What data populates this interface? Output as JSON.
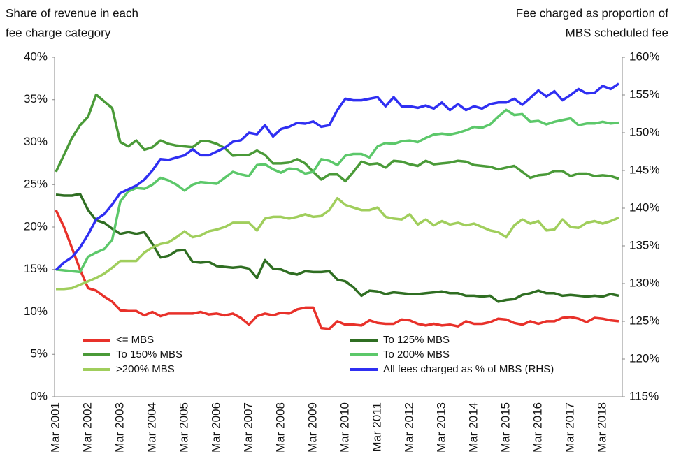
{
  "chart_data": {
    "type": "line",
    "ylabel": [
      "Share of revenue in each",
      "fee charge category"
    ],
    "y2label": [
      "Fee charged as proportion of",
      "MBS scheduled fee"
    ],
    "categories": [
      "Mar 2001",
      null,
      null,
      null,
      "Mar 2002",
      null,
      null,
      null,
      "Mar 2003",
      null,
      null,
      null,
      "Mar 2004",
      null,
      null,
      null,
      "Mar 2005",
      null,
      null,
      null,
      "Mar 2006",
      null,
      null,
      null,
      "Mar 2007",
      null,
      null,
      null,
      "Mar 2008",
      null,
      null,
      null,
      "Mar 2009",
      null,
      null,
      null,
      "Mar 2010",
      null,
      null,
      null,
      "Mar 2011",
      null,
      null,
      null,
      "Mar 2012",
      null,
      null,
      null,
      "Mar 2013",
      null,
      null,
      null,
      "Mar 2014",
      null,
      null,
      null,
      "Mar 2015",
      null,
      null,
      null,
      "Mar 2016",
      null,
      null,
      null,
      "Mar 2017",
      null,
      null,
      null,
      "Mar 2018",
      null,
      null
    ],
    "ylim": [
      0,
      40
    ],
    "yticks": [
      {
        "value": 0,
        "label": "0%"
      },
      {
        "value": 5,
        "label": "5%"
      },
      {
        "value": 10,
        "label": "10%"
      },
      {
        "value": 15,
        "label": "15%"
      },
      {
        "value": 20,
        "label": "20%"
      },
      {
        "value": 25,
        "label": "25%"
      },
      {
        "value": 30,
        "label": "30%"
      },
      {
        "value": 35,
        "label": "35%"
      },
      {
        "value": 40,
        "label": "40%"
      }
    ],
    "y2lim": [
      115,
      160
    ],
    "y2ticks": [
      {
        "value": 115,
        "label": "115%"
      },
      {
        "value": 120,
        "label": "120%"
      },
      {
        "value": 125,
        "label": "125%"
      },
      {
        "value": 130,
        "label": "130%"
      },
      {
        "value": 135,
        "label": "135%"
      },
      {
        "value": 140,
        "label": "140%"
      },
      {
        "value": 145,
        "label": "145%"
      },
      {
        "value": 150,
        "label": "150%"
      },
      {
        "value": 155,
        "label": "155%"
      },
      {
        "value": 160,
        "label": "160%"
      }
    ],
    "grid": false,
    "series": [
      {
        "name": "<= MBS",
        "color": "#e8312a",
        "values": [
          22,
          20,
          17.5,
          15,
          12.8,
          12.5,
          11.8,
          11.2,
          10.2,
          10.1,
          10.1,
          9.6,
          10.0,
          9.5,
          9.8,
          9.8,
          9.8,
          9.8,
          10.0,
          9.7,
          9.8,
          9.6,
          9.8,
          9.3,
          8.5,
          9.5,
          9.8,
          9.6,
          9.9,
          9.8,
          10.3,
          10.5,
          10.5,
          8.1,
          8.0,
          8.9,
          8.5,
          8.5,
          8.4,
          9.0,
          8.7,
          8.6,
          8.6,
          9.1,
          9.0,
          8.6,
          8.4,
          8.6,
          8.4,
          8.5,
          8.3,
          8.9,
          8.6,
          8.6,
          8.8,
          9.2,
          9.1,
          8.7,
          8.5,
          8.9,
          8.6,
          8.9,
          8.9,
          9.3,
          9.4,
          9.2,
          8.8,
          9.3,
          9.2,
          9.0,
          8.9
        ]
      },
      {
        "name": "To 125% MBS",
        "color": "#2f6e22",
        "values": [
          23.8,
          23.7,
          23.7,
          23.9,
          22,
          20.8,
          20.5,
          19.8,
          19.2,
          19.4,
          19.2,
          19.4,
          18.0,
          16.4,
          16.6,
          17.2,
          17.3,
          15.9,
          15.8,
          15.9,
          15.4,
          15.3,
          15.2,
          15.3,
          15.1,
          14.0,
          16.1,
          15.1,
          15.0,
          14.6,
          14.4,
          14.8,
          14.7,
          14.7,
          14.8,
          13.8,
          13.6,
          12.9,
          11.9,
          12.5,
          12.4,
          12.1,
          12.3,
          12.2,
          12.1,
          12.1,
          12.2,
          12.3,
          12.4,
          12.2,
          12.2,
          11.9,
          11.9,
          11.8,
          11.9,
          11.2,
          11.4,
          11.5,
          12.0,
          12.2,
          12.5,
          12.2,
          12.2,
          11.9,
          12.0,
          11.9,
          11.8,
          11.9,
          11.8,
          12.1,
          11.9
        ]
      },
      {
        "name": "To 150% MBS",
        "color": "#4a9a38",
        "values": [
          26.5,
          28.5,
          30.5,
          32,
          33,
          35.6,
          34.8,
          34,
          30,
          29.5,
          30.2,
          29.1,
          29.4,
          30.2,
          29.8,
          29.6,
          29.5,
          29.4,
          30.1,
          30.1,
          29.8,
          29.3,
          28.4,
          28.5,
          28.5,
          29.0,
          28.5,
          27.5,
          27.5,
          27.6,
          28.0,
          27.5,
          26.5,
          25.6,
          26.2,
          26.2,
          25.4,
          26.5,
          27.7,
          27.4,
          27.5,
          27.0,
          27.8,
          27.7,
          27.4,
          27.2,
          27.8,
          27.4,
          27.5,
          27.6,
          27.8,
          27.7,
          27.3,
          27.2,
          27.1,
          26.8,
          27.0,
          27.2,
          26.5,
          25.8,
          26.1,
          26.2,
          26.6,
          26.6,
          26.0,
          26.3,
          26.3,
          26.0,
          26.1,
          26.0,
          25.7
        ]
      },
      {
        "name": "To 200% MBS",
        "color": "#5cc86a",
        "values": [
          15,
          14.9,
          14.8,
          14.7,
          16.5,
          17.0,
          17.4,
          18.5,
          23.0,
          24.2,
          24.6,
          24.5,
          25.0,
          25.8,
          25.5,
          25.0,
          24.3,
          25.0,
          25.3,
          25.2,
          25.1,
          25.8,
          26.5,
          26.2,
          26.0,
          27.3,
          27.4,
          26.8,
          26.4,
          26.9,
          26.8,
          26.3,
          26.5,
          28.0,
          27.8,
          27.3,
          28.4,
          28.6,
          28.6,
          28.2,
          29.5,
          29.9,
          29.8,
          30.1,
          30.2,
          30.0,
          30.5,
          30.9,
          31.0,
          30.9,
          31.1,
          31.4,
          31.8,
          31.7,
          32.1,
          33.0,
          33.8,
          33.2,
          33.3,
          32.4,
          32.5,
          32.1,
          32.4,
          32.6,
          32.8,
          32.0,
          32.2,
          32.2,
          32.4,
          32.2,
          32.3
        ]
      },
      {
        "name": ">200% MBS",
        "color": "#a0ce5c",
        "values": [
          12.7,
          12.7,
          12.8,
          13.2,
          13.6,
          14.0,
          14.5,
          15.2,
          16.0,
          16.0,
          16.0,
          17.0,
          17.6,
          18.0,
          18.2,
          18.8,
          19.5,
          18.8,
          19.0,
          19.5,
          19.7,
          20.0,
          20.5,
          20.5,
          20.5,
          19.6,
          21.0,
          21.2,
          21.2,
          21.0,
          21.2,
          21.5,
          21.2,
          21.3,
          22.0,
          23.4,
          22.6,
          22.3,
          22.0,
          22.0,
          22.3,
          21.2,
          21.0,
          20.9,
          21.5,
          20.3,
          20.9,
          20.2,
          20.7,
          20.3,
          20.5,
          20.2,
          20.4,
          20.0,
          19.6,
          19.4,
          18.8,
          20.2,
          20.9,
          20.4,
          20.7,
          19.6,
          19.7,
          20.9,
          20.0,
          19.9,
          20.5,
          20.7,
          20.4,
          20.7,
          21.1
        ]
      },
      {
        "name": "All fees charged as % of MBS (RHS)",
        "color": "#2f2ff2",
        "axis": "y2",
        "values": [
          131.8,
          132.8,
          133.5,
          134.8,
          136.5,
          138.5,
          139.2,
          140.5,
          142,
          142.5,
          143.0,
          143.8,
          145.0,
          146.5,
          146.4,
          146.7,
          147.0,
          147.8,
          147.0,
          147.0,
          147.5,
          148.0,
          148.8,
          149.0,
          150.0,
          149.8,
          151.0,
          149.5,
          150.5,
          150.8,
          151.3,
          151.2,
          151.5,
          150.8,
          151.0,
          153.0,
          154.5,
          154.3,
          154.3,
          154.5,
          154.7,
          153.5,
          154.7,
          153.5,
          153.5,
          153.3,
          153.6,
          153.2,
          154.0,
          153.0,
          153.8,
          153.0,
          153.5,
          153.2,
          153.8,
          154.0,
          154.0,
          154.5,
          153.7,
          154.6,
          155.6,
          154.8,
          155.5,
          154.3,
          155.0,
          155.8,
          155.2,
          155.3,
          156.2,
          155.8,
          156.5
        ]
      }
    ]
  }
}
